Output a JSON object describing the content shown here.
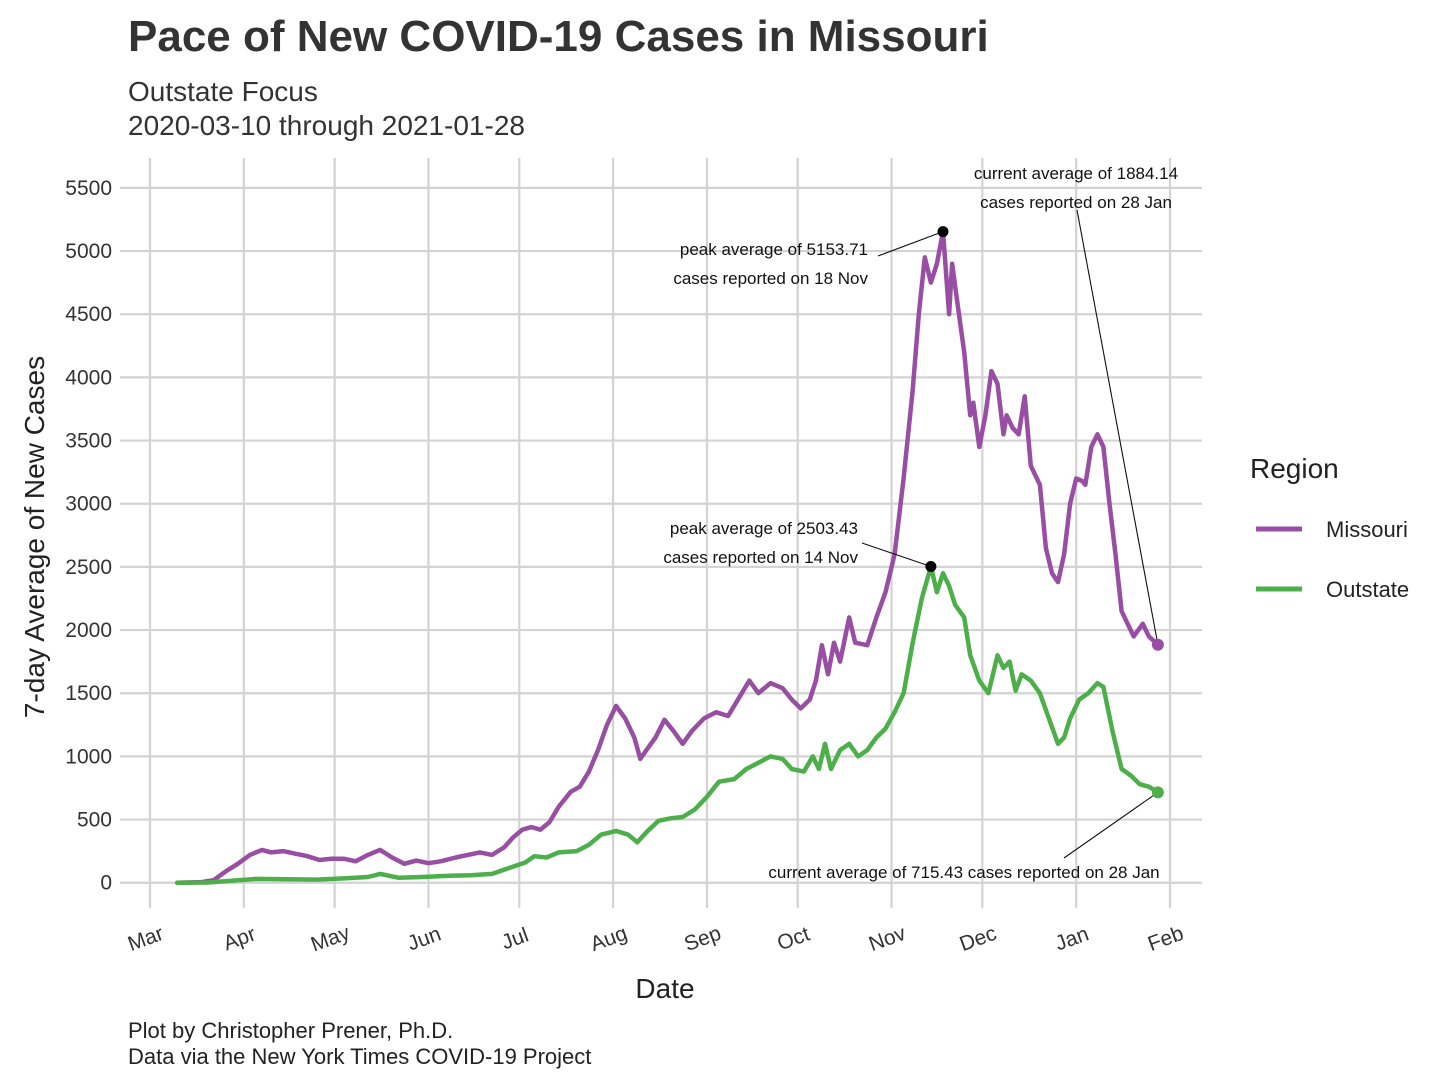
{
  "header": {
    "title": "Pace of New COVID-19 Cases in Missouri",
    "subtitle_line1": "Outstate Focus",
    "subtitle_line2": "2020-03-10 through 2021-01-28"
  },
  "caption": {
    "line1": "Plot by Christopher Prener, Ph.D.",
    "line2": "Data via the New York Times COVID-19 Project"
  },
  "chart_data": {
    "type": "line",
    "title": "Pace of New COVID-19 Cases in Missouri",
    "subtitle": "Outstate Focus",
    "xlabel": "Date",
    "ylabel": "7-day Average of New Cases",
    "xlim": [
      "2020-03-01",
      "2021-02-01"
    ],
    "ylim": [
      -200,
      5800
    ],
    "grid": true,
    "x_ticks": [
      {
        "date": "2020-03-01",
        "label": "Mar"
      },
      {
        "date": "2020-04-01",
        "label": "Apr"
      },
      {
        "date": "2020-05-01",
        "label": "May"
      },
      {
        "date": "2020-06-01",
        "label": "Jun"
      },
      {
        "date": "2020-07-01",
        "label": "Jul"
      },
      {
        "date": "2020-08-01",
        "label": "Aug"
      },
      {
        "date": "2020-09-01",
        "label": "Sep"
      },
      {
        "date": "2020-10-01",
        "label": "Oct"
      },
      {
        "date": "2020-11-01",
        "label": "Nov"
      },
      {
        "date": "2020-12-01",
        "label": "Dec"
      },
      {
        "date": "2021-01-01",
        "label": "Jan"
      },
      {
        "date": "2021-02-01",
        "label": "Feb"
      }
    ],
    "y_ticks": [
      0,
      500,
      1000,
      1500,
      2000,
      2500,
      3000,
      3500,
      4000,
      4500,
      5000,
      5500
    ],
    "legend": {
      "title": "Region",
      "position": "right"
    },
    "series": [
      {
        "name": "Missouri",
        "color": "#984ea3",
        "points": [
          [
            "2020-03-10",
            0
          ],
          [
            "2020-03-18",
            5
          ],
          [
            "2020-03-22",
            20
          ],
          [
            "2020-03-26",
            90
          ],
          [
            "2020-03-30",
            150
          ],
          [
            "2020-04-03",
            220
          ],
          [
            "2020-04-07",
            260
          ],
          [
            "2020-04-10",
            240
          ],
          [
            "2020-04-14",
            250
          ],
          [
            "2020-04-18",
            230
          ],
          [
            "2020-04-22",
            210
          ],
          [
            "2020-04-26",
            180
          ],
          [
            "2020-04-30",
            190
          ],
          [
            "2020-05-04",
            190
          ],
          [
            "2020-05-08",
            170
          ],
          [
            "2020-05-12",
            220
          ],
          [
            "2020-05-16",
            260
          ],
          [
            "2020-05-20",
            200
          ],
          [
            "2020-05-24",
            150
          ],
          [
            "2020-05-28",
            175
          ],
          [
            "2020-06-01",
            155
          ],
          [
            "2020-06-05",
            170
          ],
          [
            "2020-06-10",
            200
          ],
          [
            "2020-06-14",
            220
          ],
          [
            "2020-06-18",
            240
          ],
          [
            "2020-06-22",
            220
          ],
          [
            "2020-06-26",
            280
          ],
          [
            "2020-06-29",
            360
          ],
          [
            "2020-07-02",
            420
          ],
          [
            "2020-07-05",
            440
          ],
          [
            "2020-07-08",
            420
          ],
          [
            "2020-07-11",
            480
          ],
          [
            "2020-07-14",
            600
          ],
          [
            "2020-07-18",
            720
          ],
          [
            "2020-07-21",
            760
          ],
          [
            "2020-07-24",
            880
          ],
          [
            "2020-07-27",
            1050
          ],
          [
            "2020-07-30",
            1250
          ],
          [
            "2020-08-02",
            1400
          ],
          [
            "2020-08-05",
            1300
          ],
          [
            "2020-08-08",
            1150
          ],
          [
            "2020-08-10",
            980
          ],
          [
            "2020-08-12",
            1050
          ],
          [
            "2020-08-15",
            1150
          ],
          [
            "2020-08-18",
            1290
          ],
          [
            "2020-08-21",
            1200
          ],
          [
            "2020-08-24",
            1100
          ],
          [
            "2020-08-27",
            1200
          ],
          [
            "2020-08-31",
            1300
          ],
          [
            "2020-09-04",
            1350
          ],
          [
            "2020-09-08",
            1320
          ],
          [
            "2020-09-12",
            1480
          ],
          [
            "2020-09-15",
            1600
          ],
          [
            "2020-09-18",
            1500
          ],
          [
            "2020-09-22",
            1580
          ],
          [
            "2020-09-26",
            1540
          ],
          [
            "2020-09-29",
            1450
          ],
          [
            "2020-10-02",
            1380
          ],
          [
            "2020-10-05",
            1450
          ],
          [
            "2020-10-07",
            1600
          ],
          [
            "2020-10-09",
            1880
          ],
          [
            "2020-10-11",
            1650
          ],
          [
            "2020-10-13",
            1900
          ],
          [
            "2020-10-15",
            1750
          ],
          [
            "2020-10-18",
            2100
          ],
          [
            "2020-10-20",
            1900
          ],
          [
            "2020-10-24",
            1880
          ],
          [
            "2020-10-27",
            2100
          ],
          [
            "2020-10-30",
            2300
          ],
          [
            "2020-11-02",
            2600
          ],
          [
            "2020-11-05",
            3200
          ],
          [
            "2020-11-08",
            3900
          ],
          [
            "2020-11-10",
            4500
          ],
          [
            "2020-11-12",
            4950
          ],
          [
            "2020-11-14",
            4750
          ],
          [
            "2020-11-16",
            4900
          ],
          [
            "2020-11-18",
            5153.71
          ],
          [
            "2020-11-20",
            4500
          ],
          [
            "2020-11-21",
            4900
          ],
          [
            "2020-11-23",
            4550
          ],
          [
            "2020-11-25",
            4200
          ],
          [
            "2020-11-27",
            3700
          ],
          [
            "2020-11-28",
            3800
          ],
          [
            "2020-11-30",
            3450
          ],
          [
            "2020-12-02",
            3700
          ],
          [
            "2020-12-04",
            4050
          ],
          [
            "2020-12-06",
            3950
          ],
          [
            "2020-12-08",
            3550
          ],
          [
            "2020-12-09",
            3700
          ],
          [
            "2020-12-11",
            3600
          ],
          [
            "2020-12-13",
            3550
          ],
          [
            "2020-12-15",
            3850
          ],
          [
            "2020-12-17",
            3300
          ],
          [
            "2020-12-20",
            3150
          ],
          [
            "2020-12-22",
            2650
          ],
          [
            "2020-12-24",
            2450
          ],
          [
            "2020-12-26",
            2380
          ],
          [
            "2020-12-28",
            2600
          ],
          [
            "2020-12-30",
            3000
          ],
          [
            "2021-01-01",
            3200
          ],
          [
            "2021-01-03",
            3180
          ],
          [
            "2021-01-04",
            3150
          ],
          [
            "2021-01-06",
            3450
          ],
          [
            "2021-01-08",
            3550
          ],
          [
            "2021-01-10",
            3450
          ],
          [
            "2021-01-12",
            3000
          ],
          [
            "2021-01-14",
            2600
          ],
          [
            "2021-01-16",
            2150
          ],
          [
            "2021-01-18",
            2050
          ],
          [
            "2021-01-20",
            1950
          ],
          [
            "2021-01-23",
            2050
          ],
          [
            "2021-01-25",
            1950
          ],
          [
            "2021-01-28",
            1884.14
          ]
        ]
      },
      {
        "name": "Outstate",
        "color": "#4daf4a",
        "points": [
          [
            "2020-03-10",
            0
          ],
          [
            "2020-03-20",
            2
          ],
          [
            "2020-03-28",
            15
          ],
          [
            "2020-04-05",
            30
          ],
          [
            "2020-04-15",
            28
          ],
          [
            "2020-04-25",
            25
          ],
          [
            "2020-05-05",
            35
          ],
          [
            "2020-05-12",
            45
          ],
          [
            "2020-05-16",
            70
          ],
          [
            "2020-05-22",
            40
          ],
          [
            "2020-05-30",
            45
          ],
          [
            "2020-06-08",
            55
          ],
          [
            "2020-06-15",
            60
          ],
          [
            "2020-06-22",
            70
          ],
          [
            "2020-06-28",
            120
          ],
          [
            "2020-07-03",
            160
          ],
          [
            "2020-07-06",
            210
          ],
          [
            "2020-07-10",
            200
          ],
          [
            "2020-07-14",
            240
          ],
          [
            "2020-07-20",
            250
          ],
          [
            "2020-07-24",
            300
          ],
          [
            "2020-07-28",
            380
          ],
          [
            "2020-08-02",
            410
          ],
          [
            "2020-08-06",
            380
          ],
          [
            "2020-08-09",
            320
          ],
          [
            "2020-08-12",
            400
          ],
          [
            "2020-08-16",
            490
          ],
          [
            "2020-08-20",
            510
          ],
          [
            "2020-08-24",
            520
          ],
          [
            "2020-08-28",
            580
          ],
          [
            "2020-09-01",
            680
          ],
          [
            "2020-09-05",
            800
          ],
          [
            "2020-09-10",
            820
          ],
          [
            "2020-09-14",
            900
          ],
          [
            "2020-09-18",
            950
          ],
          [
            "2020-09-22",
            1000
          ],
          [
            "2020-09-26",
            980
          ],
          [
            "2020-09-29",
            900
          ],
          [
            "2020-10-03",
            880
          ],
          [
            "2020-10-06",
            1000
          ],
          [
            "2020-10-08",
            900
          ],
          [
            "2020-10-10",
            1100
          ],
          [
            "2020-10-12",
            900
          ],
          [
            "2020-10-15",
            1050
          ],
          [
            "2020-10-18",
            1100
          ],
          [
            "2020-10-21",
            1000
          ],
          [
            "2020-10-24",
            1050
          ],
          [
            "2020-10-27",
            1150
          ],
          [
            "2020-10-30",
            1220
          ],
          [
            "2020-11-02",
            1350
          ],
          [
            "2020-11-05",
            1500
          ],
          [
            "2020-11-08",
            1900
          ],
          [
            "2020-11-11",
            2250
          ],
          [
            "2020-11-14",
            2503.43
          ],
          [
            "2020-11-16",
            2300
          ],
          [
            "2020-11-18",
            2450
          ],
          [
            "2020-11-20",
            2350
          ],
          [
            "2020-11-22",
            2200
          ],
          [
            "2020-11-25",
            2100
          ],
          [
            "2020-11-27",
            1800
          ],
          [
            "2020-11-30",
            1600
          ],
          [
            "2020-12-03",
            1500
          ],
          [
            "2020-12-06",
            1800
          ],
          [
            "2020-12-08",
            1700
          ],
          [
            "2020-12-10",
            1750
          ],
          [
            "2020-12-12",
            1520
          ],
          [
            "2020-12-14",
            1650
          ],
          [
            "2020-12-17",
            1600
          ],
          [
            "2020-12-20",
            1500
          ],
          [
            "2020-12-23",
            1300
          ],
          [
            "2020-12-26",
            1100
          ],
          [
            "2020-12-28",
            1150
          ],
          [
            "2020-12-30",
            1300
          ],
          [
            "2021-01-02",
            1450
          ],
          [
            "2021-01-05",
            1500
          ],
          [
            "2021-01-08",
            1580
          ],
          [
            "2021-01-10",
            1550
          ],
          [
            "2021-01-13",
            1200
          ],
          [
            "2021-01-16",
            900
          ],
          [
            "2021-01-19",
            850
          ],
          [
            "2021-01-22",
            780
          ],
          [
            "2021-01-25",
            760
          ],
          [
            "2021-01-28",
            715.43
          ]
        ]
      }
    ],
    "annotations": [
      {
        "series": "Missouri",
        "date": "2020-11-18",
        "value": 5153.71,
        "lines": [
          "peak average of 5153.71",
          "cases reported on 18 Nov"
        ]
      },
      {
        "series": "Outstate",
        "date": "2020-11-14",
        "value": 2503.43,
        "lines": [
          "peak average of 2503.43",
          "cases reported on 14 Nov"
        ]
      },
      {
        "series": "Missouri",
        "date": "2021-01-28",
        "value": 1884.14,
        "lines": [
          "current average of 1884.14",
          "cases reported on 28 Jan"
        ]
      },
      {
        "series": "Outstate",
        "date": "2021-01-28",
        "value": 715.43,
        "lines": [
          "current average of 715.43 cases reported on 28 Jan"
        ]
      }
    ]
  }
}
